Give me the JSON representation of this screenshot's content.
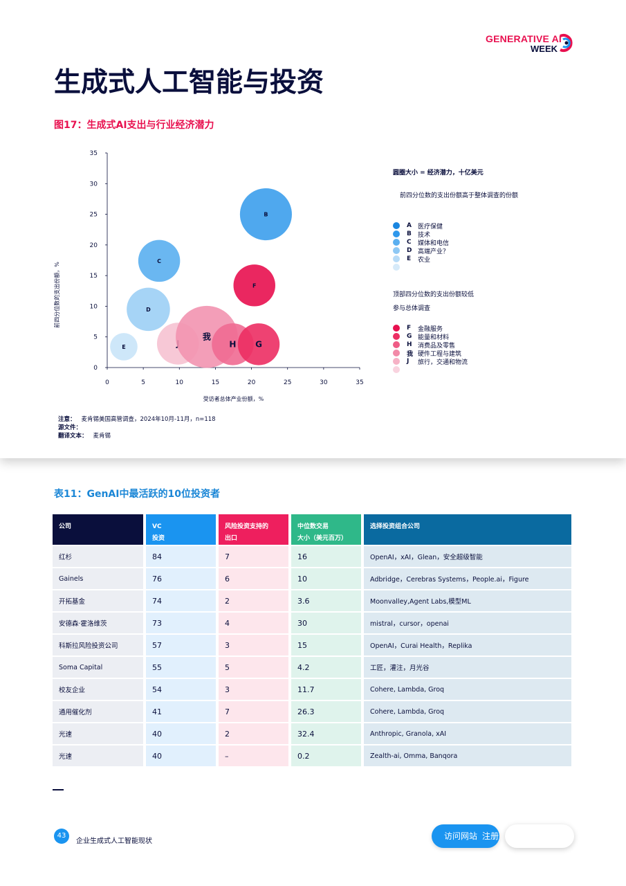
{
  "logo": {
    "line1": "GENERATIVE AI",
    "line2": "WEEK"
  },
  "page_title": "生成式人工智能与投资",
  "figure": {
    "title": "图17：生成式AI支出与行业经济潜力",
    "legend_header": "圆圈大小 = 经济潜力，十亿美元",
    "group1_title": "前四分位数的支出份额高于整体调查的份额",
    "group1": [
      {
        "key": "A",
        "label": "医疗保健",
        "color": "#1a86e0"
      },
      {
        "key": "B",
        "label": "技术",
        "color": "#2f98ec"
      },
      {
        "key": "C",
        "label": "媒体和电信",
        "color": "#5aaff0"
      },
      {
        "key": "D",
        "label": "高端产业？",
        "color": "#8ec8f4"
      },
      {
        "key": "E",
        "label": "农业",
        "color": "#b7dbf7"
      },
      {
        "key": "",
        "label": "",
        "color": "#d6eaf9"
      }
    ],
    "group2_title_line1": "顶部四分位数的支出份额较低",
    "group2_title_line2": "参与总体调查",
    "group2": [
      {
        "key": "F",
        "label": "金融服务",
        "color": "#e8104f"
      },
      {
        "key": "G",
        "label": "能量和材料",
        "color": "#ec2e63"
      },
      {
        "key": "H",
        "label": "消费品及零售",
        "color": "#ef5c86"
      },
      {
        "key": "我",
        "label": "硬件工程与建筑",
        "color": "#f28aa8"
      },
      {
        "key": "J",
        "label": "旅行，交通和物流",
        "color": "#f6b2c6"
      },
      {
        "key": "",
        "label": "",
        "color": "#f9d3df"
      }
    ],
    "notes": [
      {
        "label": "注意：",
        "text": "麦肯锡美国高管调查，2024年10月-11月，n=118"
      },
      {
        "label": "源文件：",
        "text": ""
      },
      {
        "label": "翻译文本：",
        "text": "麦肯锡"
      }
    ]
  },
  "chart_data": {
    "type": "bubble",
    "xlabel": "受访者总体产业份额，%",
    "ylabel": "前四分位数的支出份额，%",
    "xlim": [
      0,
      35
    ],
    "ylim": [
      0,
      35
    ],
    "xticks": [
      0,
      5,
      10,
      15,
      20,
      25,
      30,
      35
    ],
    "yticks": [
      0,
      5,
      10,
      15,
      20,
      25,
      30,
      35
    ],
    "points": [
      {
        "label": "B",
        "x": 22,
        "y": 25,
        "r": 3.6,
        "color": "#3c9eec"
      },
      {
        "label": "C",
        "x": 7.2,
        "y": 17.4,
        "r": 2.9,
        "color": "#5aaff0"
      },
      {
        "label": "D",
        "x": 5.7,
        "y": 9.5,
        "r": 3.0,
        "color": "#9ccff5"
      },
      {
        "label": "E",
        "x": 2.3,
        "y": 3.4,
        "r": 1.9,
        "color": "#c9e4f8"
      },
      {
        "label": "F",
        "x": 20.4,
        "y": 13.4,
        "r": 2.9,
        "color": "#e8104f"
      },
      {
        "label": "J",
        "x": 9.8,
        "y": 3.9,
        "r": 2.9,
        "color": "#f6c2d2"
      },
      {
        "label": "我",
        "x": 13.8,
        "y": 5.0,
        "r": 4.3,
        "color": "#f294b0"
      },
      {
        "label": "H",
        "x": 17.4,
        "y": 3.8,
        "r": 2.9,
        "color": "#ef6a92"
      },
      {
        "label": "G",
        "x": 21.0,
        "y": 3.8,
        "r": 2.9,
        "color": "#ec2e63"
      }
    ]
  },
  "table": {
    "title": "表11：GenAI中最活跃的10位投资者",
    "headers": [
      {
        "l1": "公司",
        "l2": ""
      },
      {
        "l1": "VC",
        "l2": "投资"
      },
      {
        "l1": "风险投资支持的",
        "l2": "出口"
      },
      {
        "l1": "中位数交易",
        "l2": "大小（美元百万）"
      },
      {
        "l1": "选择投资组合公司",
        "l2": ""
      }
    ],
    "rows": [
      [
        "红杉",
        "84",
        "7",
        "16",
        "OpenAI，xAI，Glean，安全超级智能"
      ],
      [
        "Gainels",
        "76",
        "6",
        "10",
        "Adbridge，Cerebras Systems，People.ai，Figure"
      ],
      [
        "开拓基金",
        "74",
        "2",
        "3.6",
        "Moonvalley,Agent Labs,模型ML"
      ],
      [
        "安德森·霍洛维茨",
        "73",
        "4",
        "30",
        "mistral，cursor，openai"
      ],
      [
        "科斯拉风险投资公司",
        "57",
        "3",
        "15",
        "OpenAI，Curai Health，Replika"
      ],
      [
        "Soma Capital",
        "55",
        "5",
        "4.2",
        "工匠，灌注，月光谷"
      ],
      [
        "校友企业",
        "54",
        "3",
        "11.7",
        "Cohere, Lambda, Groq"
      ],
      [
        "通用催化剂",
        "41",
        "7",
        "26.3",
        "Cohere, Lambda, Groq"
      ],
      [
        "光速",
        "40",
        "2",
        "32.4",
        "Anthropic, Granola, xAI"
      ],
      [
        "光速",
        "40",
        "–",
        "0.2",
        "Zealth-ai, Omma, Banqora"
      ]
    ]
  },
  "footer": {
    "page_number": "43",
    "report_name": "企业生成式人工智能现状",
    "visit_label": "访问网站",
    "register_label": "注册"
  }
}
